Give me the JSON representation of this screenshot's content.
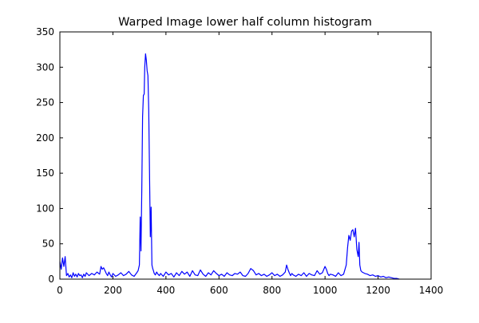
{
  "chart_data": {
    "type": "line",
    "title": "Warped Image lower half column histogram",
    "xlabel": "",
    "ylabel": "",
    "xlim": [
      0,
      1400
    ],
    "ylim": [
      0,
      350
    ],
    "x_ticks": [
      0,
      200,
      400,
      600,
      800,
      1000,
      1200,
      1400
    ],
    "y_ticks": [
      0,
      50,
      100,
      150,
      200,
      250,
      300,
      350
    ],
    "grid": false,
    "legend": "none",
    "colors": {
      "line": "#0000ff",
      "axes": "#000000",
      "background": "#ffffff"
    },
    "series": [
      {
        "x": [
          0,
          5,
          10,
          15,
          20,
          25,
          30,
          35,
          40,
          45,
          50,
          55,
          60,
          65,
          70,
          75,
          80,
          85,
          90,
          95,
          100,
          110,
          120,
          130,
          140,
          150,
          155,
          160,
          165,
          170,
          175,
          180,
          185,
          190,
          195,
          200,
          210,
          220,
          230,
          240,
          250,
          260,
          270,
          280,
          290,
          295,
          300,
          303,
          306,
          309,
          312,
          315,
          318,
          320,
          323,
          326,
          329,
          332,
          335,
          338,
          341,
          344,
          347,
          350,
          353,
          356,
          360,
          365,
          370,
          375,
          380,
          390,
          400,
          410,
          420,
          430,
          440,
          450,
          460,
          470,
          480,
          490,
          500,
          510,
          520,
          530,
          540,
          550,
          560,
          570,
          580,
          590,
          600,
          610,
          620,
          630,
          640,
          650,
          660,
          670,
          680,
          690,
          700,
          710,
          720,
          730,
          740,
          750,
          760,
          770,
          780,
          790,
          800,
          810,
          820,
          830,
          840,
          850,
          855,
          860,
          865,
          870,
          875,
          880,
          890,
          900,
          910,
          920,
          930,
          940,
          950,
          960,
          970,
          980,
          990,
          1000,
          1005,
          1010,
          1015,
          1020,
          1030,
          1040,
          1050,
          1060,
          1070,
          1080,
          1085,
          1090,
          1095,
          1100,
          1105,
          1110,
          1115,
          1120,
          1125,
          1128,
          1131,
          1135,
          1140,
          1150,
          1160,
          1170,
          1180,
          1190,
          1200,
          1210,
          1220,
          1230,
          1240,
          1250,
          1260,
          1270,
          1280
        ],
        "y": [
          25,
          14,
          30,
          18,
          32,
          5,
          8,
          3,
          6,
          2,
          9,
          4,
          7,
          3,
          8,
          5,
          6,
          2,
          7,
          4,
          9,
          5,
          8,
          6,
          10,
          7,
          18,
          14,
          16,
          12,
          8,
          5,
          10,
          6,
          3,
          8,
          4,
          6,
          9,
          5,
          7,
          11,
          6,
          4,
          9,
          12,
          20,
          88,
          40,
          125,
          230,
          260,
          262,
          300,
          319,
          310,
          295,
          288,
          240,
          150,
          60,
          102,
          20,
          15,
          12,
          8,
          6,
          10,
          7,
          5,
          8,
          4,
          10,
          6,
          8,
          3,
          9,
          5,
          11,
          7,
          10,
          4,
          12,
          6,
          5,
          13,
          7,
          4,
          9,
          6,
          12,
          8,
          5,
          7,
          4,
          9,
          6,
          5,
          8,
          7,
          10,
          5,
          4,
          8,
          15,
          12,
          6,
          8,
          5,
          7,
          4,
          6,
          9,
          5,
          7,
          4,
          6,
          10,
          20,
          14,
          9,
          5,
          8,
          6,
          4,
          7,
          5,
          9,
          4,
          8,
          6,
          5,
          12,
          7,
          9,
          18,
          14,
          8,
          5,
          7,
          6,
          4,
          9,
          5,
          7,
          20,
          45,
          62,
          55,
          68,
          70,
          60,
          72,
          42,
          32,
          52,
          20,
          12,
          10,
          8,
          7,
          5,
          6,
          4,
          5,
          3,
          4,
          2,
          3,
          2,
          1,
          1,
          0
        ]
      }
    ]
  }
}
